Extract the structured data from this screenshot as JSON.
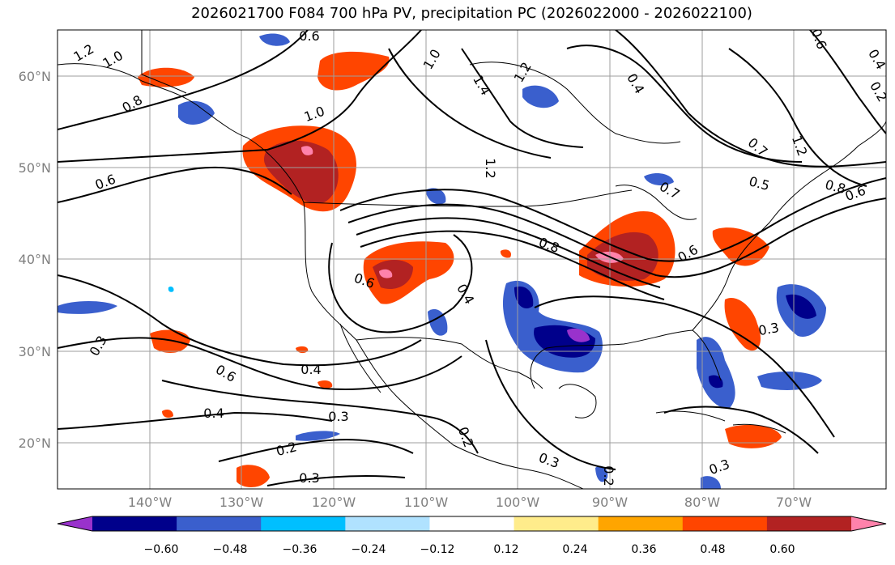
{
  "title": "2026021700 F084 700 hPa PV, precipitation PC (2026022000 - 2026022100)",
  "map": {
    "lon_range": [
      -150,
      -60
    ],
    "lat_range": [
      15,
      65
    ],
    "lat_labels": [
      "60°N",
      "50°N",
      "40°N",
      "30°N",
      "20°N"
    ],
    "lon_labels": [
      "140°W",
      "130°W",
      "120°W",
      "110°W",
      "100°W",
      "90°W",
      "80°W",
      "70°W"
    ],
    "grid": true,
    "contour_labels": [
      "1.2",
      "1.0",
      "0.6",
      "0.8",
      "1.0",
      "1.4",
      "1.2",
      "0.4",
      "0.6",
      "0.4",
      "1.0",
      "0.7",
      "1.2",
      "0.6",
      "0.5",
      "0.8",
      "0.6",
      "1.2",
      "0.7",
      "0.8",
      "0.6",
      "0.6",
      "0.4",
      "0.3",
      "0.3",
      "0.4",
      "0.6",
      "0.4",
      "0.3",
      "0.2",
      "0.3",
      "0.2",
      "0.3",
      "0.2",
      "0.3",
      "0.2"
    ]
  },
  "colorbar": {
    "ticks": [
      "−0.60",
      "−0.48",
      "−0.36",
      "−0.24",
      "−0.12",
      "0.12",
      "0.24",
      "0.36",
      "0.48",
      "0.60"
    ],
    "colors": [
      "#9932cc",
      "#00008b",
      "#3a5fcd",
      "#00bfff",
      "#b0e2ff",
      "#ffffff",
      "#ffec8b",
      "#ffa500",
      "#ff4500",
      "#b22222",
      "#ff82ab"
    ],
    "extend": "both"
  }
}
